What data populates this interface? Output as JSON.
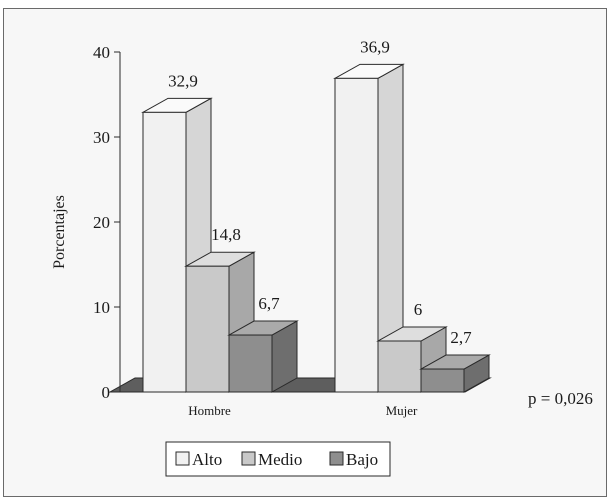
{
  "chart_data": {
    "type": "bar",
    "categories": [
      "Hombre",
      "Mujer"
    ],
    "series": [
      {
        "name": "Alto",
        "values": [
          32.9,
          36.9
        ],
        "labels": [
          "32,9",
          "36,9"
        ],
        "color": "#f1f1f1"
      },
      {
        "name": "Medio",
        "values": [
          14.8,
          6.0
        ],
        "labels": [
          "14,8",
          "6"
        ],
        "color": "#c9c9c9"
      },
      {
        "name": "Bajo",
        "values": [
          6.7,
          2.7
        ],
        "labels": [
          "6,7",
          "2,7"
        ],
        "color": "#8e8e8e"
      }
    ],
    "ylabel": "Porcentajes",
    "xlabel": "",
    "ylim": [
      0,
      40
    ],
    "yticks": [
      0,
      10,
      20,
      30,
      40
    ],
    "annotation": "p = 0,026",
    "legend_position": "bottom",
    "grid": false,
    "style": "3d"
  }
}
